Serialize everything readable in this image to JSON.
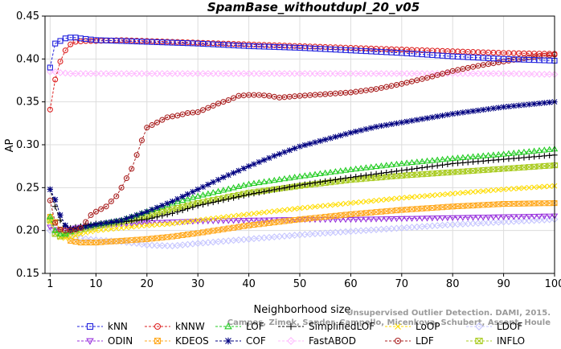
{
  "chart_data": {
    "type": "line",
    "title": "SpamBase_withoutdupl_20_v05",
    "xlabel": "Neighborhood size",
    "ylabel": "AP",
    "xlim": [
      0,
      100
    ],
    "ylim": [
      0.15,
      0.45
    ],
    "xticks": [
      1,
      10,
      20,
      30,
      40,
      50,
      60,
      70,
      80,
      90,
      100
    ],
    "yticks": [
      0.15,
      0.2,
      0.25,
      0.3,
      0.35,
      0.4,
      0.45
    ],
    "xtick_labels": [
      "1",
      "10",
      "20",
      "30",
      "40",
      "50",
      "60",
      "70",
      "80",
      "90",
      "100"
    ],
    "ytick_labels": [
      "0.15",
      "0.20",
      "0.25",
      "0.30",
      "0.35",
      "0.40",
      "0.45"
    ],
    "grid": true,
    "legend_position": "bottom",
    "credit_lines": [
      "Unsupervised Outlier Detection. DAMI, 2015.",
      "Campos, Zimek, Sander, Campello, Micenkova, Schubert, Assent, Houle"
    ],
    "series": [
      {
        "name": "kNN",
        "color": "#2020dd",
        "marker": "square",
        "points": [
          [
            1,
            0.39
          ],
          [
            2,
            0.418
          ],
          [
            3,
            0.421
          ],
          [
            4,
            0.424
          ],
          [
            5,
            0.425
          ],
          [
            6,
            0.425
          ],
          [
            7,
            0.424
          ],
          [
            10,
            0.422
          ],
          [
            15,
            0.421
          ],
          [
            20,
            0.42
          ],
          [
            30,
            0.418
          ],
          [
            40,
            0.415
          ],
          [
            50,
            0.413
          ],
          [
            60,
            0.41
          ],
          [
            70,
            0.407
          ],
          [
            80,
            0.403
          ],
          [
            90,
            0.4
          ],
          [
            100,
            0.398
          ]
        ]
      },
      {
        "name": "kNNW",
        "color": "#dd2020",
        "marker": "circle",
        "points": [
          [
            1,
            0.341
          ],
          [
            2,
            0.376
          ],
          [
            3,
            0.397
          ],
          [
            4,
            0.41
          ],
          [
            5,
            0.417
          ],
          [
            6,
            0.42
          ],
          [
            8,
            0.421
          ],
          [
            10,
            0.421
          ],
          [
            15,
            0.422
          ],
          [
            20,
            0.421
          ],
          [
            30,
            0.419
          ],
          [
            40,
            0.417
          ],
          [
            50,
            0.415
          ],
          [
            60,
            0.413
          ],
          [
            70,
            0.411
          ],
          [
            80,
            0.409
          ],
          [
            90,
            0.407
          ],
          [
            100,
            0.406
          ]
        ]
      },
      {
        "name": "LOF",
        "color": "#22cc22",
        "marker": "triangle",
        "points": [
          [
            1,
            0.216
          ],
          [
            2,
            0.2
          ],
          [
            3,
            0.196
          ],
          [
            4,
            0.196
          ],
          [
            5,
            0.199
          ],
          [
            7,
            0.204
          ],
          [
            10,
            0.207
          ],
          [
            15,
            0.212
          ],
          [
            20,
            0.222
          ],
          [
            25,
            0.232
          ],
          [
            30,
            0.24
          ],
          [
            40,
            0.254
          ],
          [
            50,
            0.263
          ],
          [
            60,
            0.271
          ],
          [
            70,
            0.278
          ],
          [
            80,
            0.284
          ],
          [
            90,
            0.289
          ],
          [
            100,
            0.295
          ]
        ]
      },
      {
        "name": "SimplifiedLOF",
        "color": "#000000",
        "marker": "plus",
        "points": [
          [
            1,
            0.248
          ],
          [
            2,
            0.228
          ],
          [
            3,
            0.212
          ],
          [
            4,
            0.205
          ],
          [
            5,
            0.203
          ],
          [
            7,
            0.205
          ],
          [
            10,
            0.208
          ],
          [
            15,
            0.21
          ],
          [
            20,
            0.213
          ],
          [
            25,
            0.22
          ],
          [
            30,
            0.229
          ],
          [
            40,
            0.242
          ],
          [
            50,
            0.253
          ],
          [
            60,
            0.262
          ],
          [
            70,
            0.27
          ],
          [
            80,
            0.278
          ],
          [
            90,
            0.283
          ],
          [
            100,
            0.288
          ]
        ]
      },
      {
        "name": "LoOP",
        "color": "#ffdd00",
        "marker": "x",
        "points": [
          [
            1,
            0.21
          ],
          [
            2,
            0.196
          ],
          [
            3,
            0.192
          ],
          [
            4,
            0.191
          ],
          [
            5,
            0.192
          ],
          [
            7,
            0.196
          ],
          [
            10,
            0.2
          ],
          [
            15,
            0.203
          ],
          [
            20,
            0.206
          ],
          [
            25,
            0.208
          ],
          [
            30,
            0.212
          ],
          [
            40,
            0.219
          ],
          [
            50,
            0.226
          ],
          [
            60,
            0.232
          ],
          [
            70,
            0.238
          ],
          [
            80,
            0.243
          ],
          [
            90,
            0.248
          ],
          [
            100,
            0.252
          ]
        ]
      },
      {
        "name": "LDOF",
        "color": "#c6c6ff",
        "marker": "diamond",
        "points": [
          [
            1,
            0.2
          ],
          [
            2,
            0.196
          ],
          [
            3,
            0.195
          ],
          [
            4,
            0.194
          ],
          [
            5,
            0.193
          ],
          [
            7,
            0.191
          ],
          [
            10,
            0.189
          ],
          [
            15,
            0.187
          ],
          [
            18,
            0.185
          ],
          [
            20,
            0.183
          ],
          [
            25,
            0.182
          ],
          [
            30,
            0.185
          ],
          [
            40,
            0.19
          ],
          [
            50,
            0.195
          ],
          [
            60,
            0.199
          ],
          [
            70,
            0.203
          ],
          [
            80,
            0.207
          ],
          [
            90,
            0.21
          ],
          [
            100,
            0.213
          ]
        ]
      },
      {
        "name": "ODIN",
        "color": "#9933dd",
        "marker": "triangle-down",
        "points": [
          [
            1,
            0.204
          ],
          [
            2,
            0.201
          ],
          [
            3,
            0.201
          ],
          [
            4,
            0.201
          ],
          [
            5,
            0.202
          ],
          [
            7,
            0.204
          ],
          [
            10,
            0.206
          ],
          [
            15,
            0.208
          ],
          [
            20,
            0.209
          ],
          [
            30,
            0.211
          ],
          [
            40,
            0.212
          ],
          [
            50,
            0.213
          ],
          [
            60,
            0.213
          ],
          [
            70,
            0.214
          ],
          [
            80,
            0.215
          ],
          [
            90,
            0.216
          ],
          [
            100,
            0.217
          ]
        ]
      },
      {
        "name": "KDEOS",
        "color": "#ffaa22",
        "marker": "square-x",
        "points": [
          [
            1,
            0.216
          ],
          [
            2,
            0.21
          ],
          [
            3,
            0.201
          ],
          [
            4,
            0.194
          ],
          [
            5,
            0.188
          ],
          [
            7,
            0.186
          ],
          [
            10,
            0.186
          ],
          [
            15,
            0.188
          ],
          [
            20,
            0.19
          ],
          [
            25,
            0.193
          ],
          [
            30,
            0.197
          ],
          [
            40,
            0.206
          ],
          [
            50,
            0.213
          ],
          [
            60,
            0.219
          ],
          [
            70,
            0.224
          ],
          [
            80,
            0.228
          ],
          [
            90,
            0.231
          ],
          [
            100,
            0.232
          ]
        ]
      },
      {
        "name": "COF",
        "color": "#000080",
        "marker": "star",
        "points": [
          [
            1,
            0.248
          ],
          [
            2,
            0.236
          ],
          [
            3,
            0.218
          ],
          [
            4,
            0.206
          ],
          [
            5,
            0.201
          ],
          [
            7,
            0.203
          ],
          [
            10,
            0.207
          ],
          [
            15,
            0.212
          ],
          [
            20,
            0.222
          ],
          [
            25,
            0.234
          ],
          [
            30,
            0.248
          ],
          [
            35,
            0.262
          ],
          [
            40,
            0.275
          ],
          [
            45,
            0.287
          ],
          [
            50,
            0.298
          ],
          [
            55,
            0.306
          ],
          [
            60,
            0.314
          ],
          [
            65,
            0.321
          ],
          [
            70,
            0.326
          ],
          [
            75,
            0.331
          ],
          [
            80,
            0.336
          ],
          [
            85,
            0.34
          ],
          [
            90,
            0.344
          ],
          [
            95,
            0.347
          ],
          [
            100,
            0.35
          ]
        ]
      },
      {
        "name": "FastABOD",
        "color": "#ffbbff",
        "marker": "diamond",
        "points": [
          [
            1,
            0.385
          ],
          [
            2,
            0.385
          ],
          [
            3,
            0.384
          ],
          [
            5,
            0.383
          ],
          [
            10,
            0.383
          ],
          [
            20,
            0.383
          ],
          [
            30,
            0.383
          ],
          [
            40,
            0.383
          ],
          [
            50,
            0.383
          ],
          [
            60,
            0.383
          ],
          [
            70,
            0.383
          ],
          [
            80,
            0.383
          ],
          [
            90,
            0.383
          ],
          [
            100,
            0.382
          ]
        ]
      },
      {
        "name": "LDF",
        "color": "#aa2222",
        "marker": "circle-dot",
        "points": [
          [
            1,
            0.235
          ],
          [
            2,
            0.209
          ],
          [
            3,
            0.201
          ],
          [
            4,
            0.2
          ],
          [
            5,
            0.2
          ],
          [
            6,
            0.201
          ],
          [
            7,
            0.203
          ],
          [
            8,
            0.21
          ],
          [
            9,
            0.218
          ],
          [
            10,
            0.222
          ],
          [
            12,
            0.228
          ],
          [
            14,
            0.24
          ],
          [
            15,
            0.25
          ],
          [
            16,
            0.261
          ],
          [
            17,
            0.272
          ],
          [
            18,
            0.288
          ],
          [
            19,
            0.305
          ],
          [
            20,
            0.32
          ],
          [
            22,
            0.326
          ],
          [
            24,
            0.332
          ],
          [
            26,
            0.334
          ],
          [
            28,
            0.337
          ],
          [
            30,
            0.338
          ],
          [
            32,
            0.343
          ],
          [
            34,
            0.348
          ],
          [
            36,
            0.352
          ],
          [
            38,
            0.357
          ],
          [
            40,
            0.358
          ],
          [
            42,
            0.358
          ],
          [
            44,
            0.357
          ],
          [
            46,
            0.355
          ],
          [
            48,
            0.356
          ],
          [
            50,
            0.357
          ],
          [
            55,
            0.359
          ],
          [
            60,
            0.361
          ],
          [
            65,
            0.365
          ],
          [
            70,
            0.371
          ],
          [
            75,
            0.378
          ],
          [
            80,
            0.386
          ],
          [
            85,
            0.392
          ],
          [
            90,
            0.397
          ],
          [
            95,
            0.402
          ],
          [
            100,
            0.405
          ]
        ]
      },
      {
        "name": "INFLO",
        "color": "#aacc22",
        "marker": "hourglass",
        "points": [
          [
            1,
            0.212
          ],
          [
            2,
            0.196
          ],
          [
            3,
            0.193
          ],
          [
            4,
            0.195
          ],
          [
            5,
            0.198
          ],
          [
            7,
            0.201
          ],
          [
            10,
            0.205
          ],
          [
            15,
            0.21
          ],
          [
            20,
            0.217
          ],
          [
            25,
            0.225
          ],
          [
            30,
            0.232
          ],
          [
            40,
            0.244
          ],
          [
            50,
            0.252
          ],
          [
            60,
            0.259
          ],
          [
            70,
            0.264
          ],
          [
            80,
            0.268
          ],
          [
            90,
            0.272
          ],
          [
            100,
            0.276
          ]
        ]
      }
    ]
  }
}
